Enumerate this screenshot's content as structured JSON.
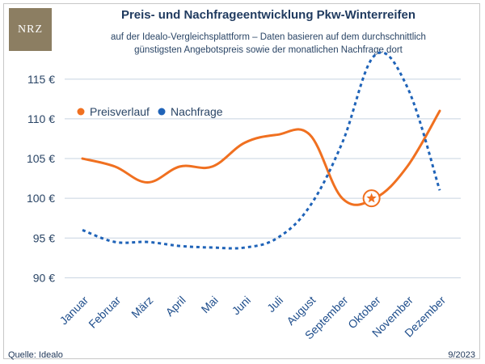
{
  "logo": {
    "text": "NRZ",
    "color": "#8c7e62"
  },
  "title": "Preis- und Nachfrageentwicklung Pkw-Winterreifen",
  "subtitle_line1": "auf der Idealo-Vergleichsplattform – Daten basieren auf dem durchschnittlich",
  "subtitle_line2": "günstigsten Angebotspreis sowie der monatlichen Nachfrage dort",
  "footer": {
    "source": "Quelle: Idealo",
    "date": "9/2023"
  },
  "chart_data": {
    "type": "line",
    "categories": [
      "Januar",
      "Februar",
      "März",
      "April",
      "Mai",
      "Juni",
      "Juli",
      "August",
      "September",
      "Oktober",
      "November",
      "Dezember"
    ],
    "y_ticks": [
      "90 €",
      "95 €",
      "100 €",
      "105 €",
      "110 €",
      "115 €"
    ],
    "y_tick_values": [
      90,
      95,
      100,
      105,
      110,
      115
    ],
    "ylim": [
      88,
      116
    ],
    "grid": "horizontal",
    "legend_placement": "top-left",
    "series": [
      {
        "name": "Preisverlauf",
        "color": "#f07020",
        "style": "solid",
        "values": [
          105,
          104,
          102,
          104,
          104,
          107,
          108,
          108,
          100,
          100,
          104,
          111
        ]
      },
      {
        "name": "Nachfrage",
        "color": "#1f63b8",
        "style": "dotted",
        "values": [
          96,
          94.5,
          94.5,
          94,
          93.8,
          93.8,
          95,
          99,
          107,
          118,
          114,
          101
        ]
      }
    ],
    "annotation": {
      "type": "star-marker",
      "series": "Preisverlauf",
      "category": "Oktober",
      "value": 100
    }
  }
}
